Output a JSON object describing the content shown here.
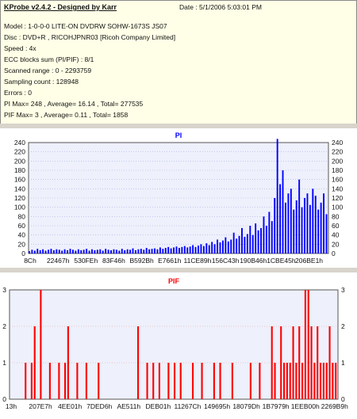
{
  "header": {
    "app_title": "KProbe v2.4.2 - Designed by Karr",
    "date": "Date : 5/1/2006 5:03:01 PM",
    "lines": [
      "Model : 1-0-0-0 LITE-ON DVDRW SOHW-1673S JS07",
      "Disc : DVD+R , RICOHJPNR03 [Ricoh Company Limited]",
      "Speed : 4x",
      "ECC blocks sum (PI/PIF) : 8/1",
      "Scanned range : 0 - 2293759",
      "Sampling count : 128948",
      "Errors : 0",
      "PI Max= 248 , Average= 16.14 , Total= 277535",
      "PIF Max= 3 , Average= 0.11 , Total= 1858"
    ]
  },
  "colors": {
    "pi": "#0000ff",
    "pif": "#ff0000",
    "plot_bg": "#eef0fb",
    "header_bg": "#ffffe7"
  },
  "chart_data": [
    {
      "type": "area",
      "title": "PI",
      "ylim": [
        0,
        240
      ],
      "yticks": [
        0,
        20,
        40,
        60,
        80,
        100,
        120,
        140,
        160,
        180,
        200,
        220,
        240
      ],
      "xtick_labels": [
        "8Ch",
        "22467h",
        "530FEh",
        "83F46h",
        "B592Bh",
        "E7661h",
        "11CE89h",
        "156C43h",
        "190B46h",
        "1CBE45h",
        "206BE1h"
      ],
      "grid": true,
      "series": [
        {
          "values": [
            5,
            8,
            6,
            10,
            7,
            9,
            6,
            8,
            10,
            7,
            9,
            8,
            6,
            9,
            7,
            10,
            8,
            6,
            9,
            7,
            8,
            10,
            6,
            9,
            7,
            8,
            9,
            6,
            10,
            8,
            7,
            9,
            8,
            6,
            10,
            7,
            9,
            8,
            11,
            7,
            9,
            10,
            8,
            12,
            9,
            10,
            11,
            9,
            13,
            10,
            12,
            14,
            11,
            13,
            15,
            12,
            14,
            16,
            13,
            15,
            18,
            14,
            17,
            20,
            16,
            22,
            18,
            25,
            20,
            30,
            24,
            28,
            35,
            26,
            30,
            45,
            32,
            38,
            55,
            36,
            42,
            60,
            40,
            65,
            50,
            55,
            80,
            60,
            90,
            70,
            120,
            248,
            150,
            180,
            110,
            130,
            140,
            95,
            115,
            160,
            100,
            120,
            130,
            105,
            140,
            125,
            95,
            110,
            130,
            85
          ]
        }
      ]
    },
    {
      "type": "bar",
      "title": "PIF",
      "ylim": [
        0,
        3
      ],
      "yticks": [
        0,
        1,
        2,
        3
      ],
      "xtick_labels": [
        "13h",
        "207E7h",
        "4EE01h",
        "7DED6h",
        "AE511h",
        "DEB01h",
        "11267Ch",
        "149695h",
        "18079Dh",
        "1B7979h",
        "1EEB00h",
        "2269B9h"
      ],
      "grid": true,
      "series": [
        {
          "values": [
            0,
            0,
            0,
            0,
            0,
            1,
            0,
            1,
            2,
            0,
            3,
            0,
            0,
            1,
            0,
            0,
            1,
            0,
            1,
            2,
            0,
            0,
            1,
            0,
            0,
            1,
            0,
            0,
            0,
            1,
            0,
            0,
            0,
            0,
            0,
            0,
            0,
            0,
            0,
            0,
            0,
            0,
            2,
            0,
            0,
            1,
            0,
            1,
            0,
            1,
            0,
            0,
            1,
            0,
            1,
            0,
            1,
            0,
            0,
            0,
            1,
            0,
            0,
            1,
            0,
            0,
            0,
            1,
            0,
            1,
            0,
            0,
            0,
            1,
            0,
            0,
            0,
            0,
            0,
            1,
            0,
            0,
            1,
            0,
            0,
            0,
            2,
            1,
            0,
            2,
            1,
            1,
            1,
            2,
            1,
            2,
            1,
            3,
            3,
            2,
            1,
            2,
            1,
            1,
            1,
            2,
            1,
            1
          ]
        }
      ]
    }
  ]
}
